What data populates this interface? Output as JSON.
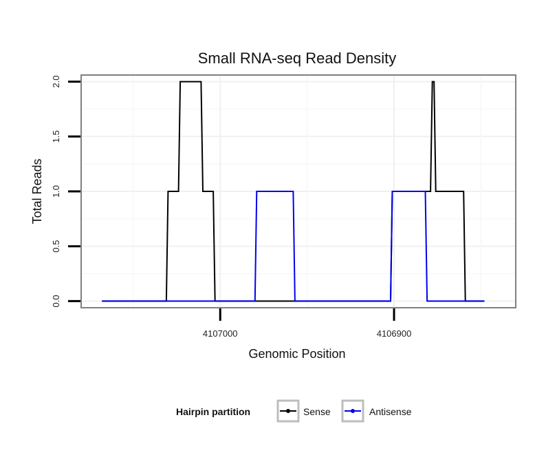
{
  "chart_data": {
    "type": "line",
    "title": "Small RNA-seq Read Density",
    "xlabel": "Genomic Position",
    "ylabel": "Total Reads",
    "x_reversed": true,
    "xlim": [
      4107080,
      4106830
    ],
    "ylim": [
      -0.06,
      2.06
    ],
    "x_ticks": [
      {
        "value": 4107000,
        "label": "4107000"
      },
      {
        "value": 4106900,
        "label": "4106900"
      }
    ],
    "y_ticks": [
      {
        "value": 0.0,
        "label": "0.0"
      },
      {
        "value": 0.5,
        "label": "0.5"
      },
      {
        "value": 1.0,
        "label": "1.0"
      },
      {
        "value": 1.5,
        "label": "1.5"
      },
      {
        "value": 2.0,
        "label": "2.0"
      }
    ],
    "legend": {
      "title": "Hairpin partition",
      "position": "bottom"
    },
    "series": [
      {
        "name": "Sense",
        "color": "#000000",
        "x": [
          4107068,
          4107031,
          4107030,
          4107024,
          4107023,
          4107011,
          4107010,
          4107004,
          4107003,
          4106902,
          4106901,
          4106879,
          4106878,
          4106877,
          4106876,
          4106860,
          4106859,
          4106848
        ],
        "y": [
          0,
          0,
          1,
          1,
          2,
          2,
          1,
          1,
          0,
          0,
          1,
          1,
          2,
          2,
          1,
          1,
          0,
          0
        ]
      },
      {
        "name": "Antisense",
        "color": "#0000ee",
        "x": [
          4107068,
          4106980,
          4106979,
          4106958,
          4106957,
          4106902,
          4106901,
          4106882,
          4106881,
          4106848
        ],
        "y": [
          0,
          0,
          1,
          1,
          0,
          0,
          1,
          1,
          0,
          0
        ]
      }
    ]
  }
}
